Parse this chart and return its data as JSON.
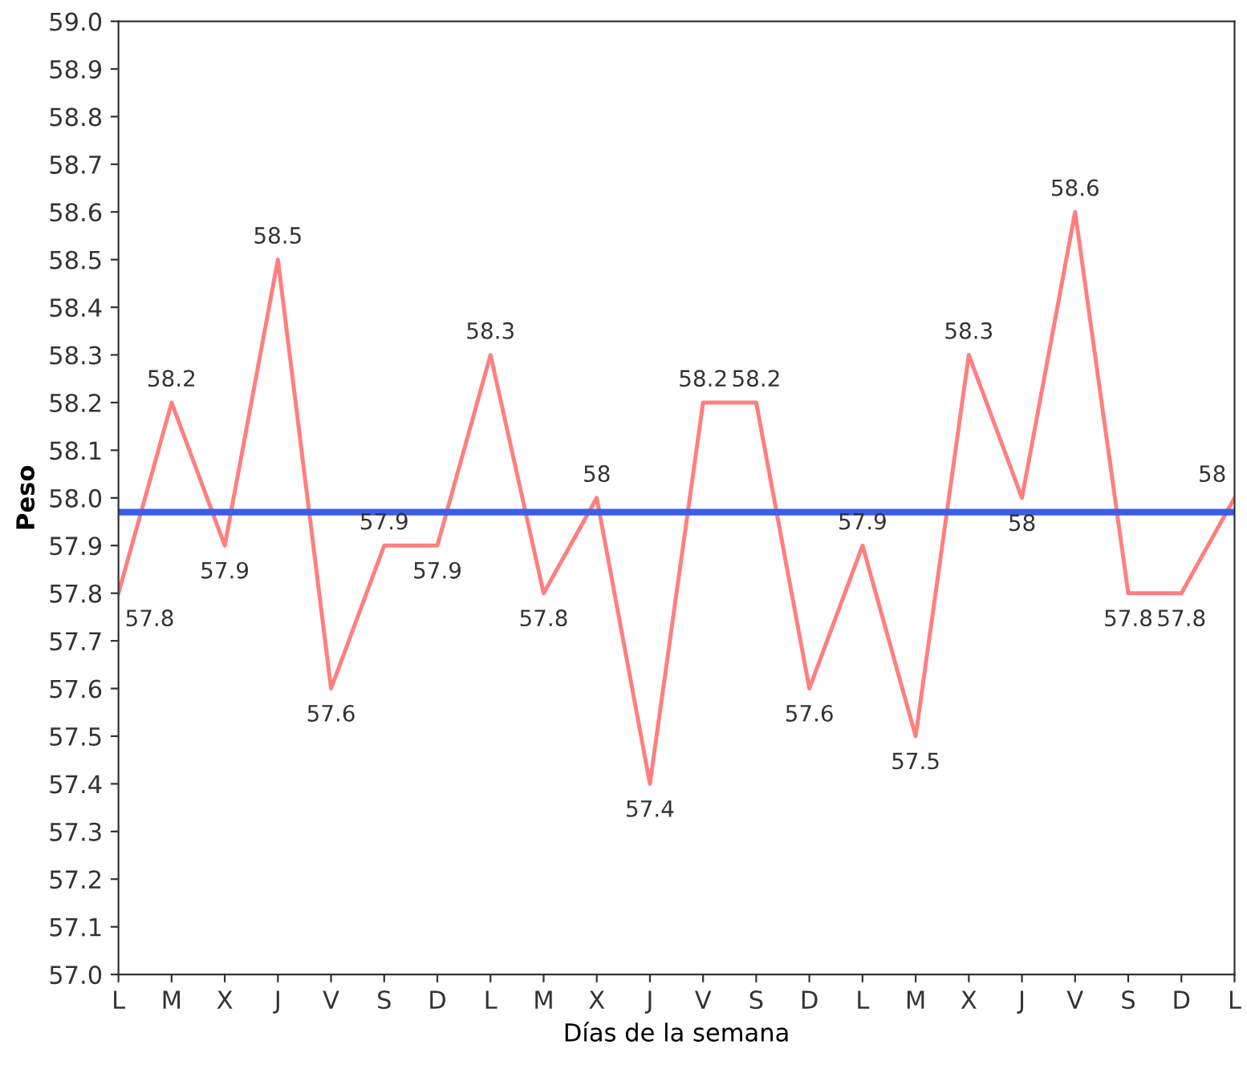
{
  "chart_data": {
    "type": "line",
    "xlabel": "Días de la semana",
    "ylabel": "Peso",
    "categories": [
      "L",
      "M",
      "X",
      "J",
      "V",
      "S",
      "D",
      "L",
      "M",
      "X",
      "J",
      "V",
      "S",
      "D",
      "L",
      "M",
      "X",
      "J",
      "V",
      "S",
      "D",
      "L"
    ],
    "series": [
      {
        "color": "#ff7f7f",
        "values": [
          57.8,
          58.2,
          57.9,
          58.5,
          57.6,
          57.9,
          57.9,
          58.3,
          57.8,
          58,
          57.4,
          58.2,
          58.2,
          57.6,
          57.9,
          57.5,
          58.3,
          58,
          58.6,
          57.8,
          57.8,
          58
        ],
        "value_labels": [
          "57.8",
          "58.2",
          "57.9",
          "58.5",
          "57.6",
          "57.9",
          "57.9",
          "58.3",
          "57.8",
          "58",
          "57.4",
          "58.2",
          "58.2",
          "57.6",
          "57.9",
          "57.5",
          "58.3",
          "58",
          "58.6",
          "57.8",
          "57.8",
          "58"
        ]
      }
    ],
    "ylim": [
      57.0,
      59.0
    ],
    "yticks": [
      {
        "value": 57.0,
        "label": "57.0"
      },
      {
        "value": 57.1,
        "label": "57.1"
      },
      {
        "value": 57.2,
        "label": "57.2"
      },
      {
        "value": 57.3,
        "label": "57.3"
      },
      {
        "value": 57.4,
        "label": "57.4"
      },
      {
        "value": 57.5,
        "label": "57.5"
      },
      {
        "value": 57.6,
        "label": "57.6"
      },
      {
        "value": 57.7,
        "label": "57.7"
      },
      {
        "value": 57.8,
        "label": "57.8"
      },
      {
        "value": 57.9,
        "label": "57.9"
      },
      {
        "value": 58.0,
        "label": "58.0"
      },
      {
        "value": 58.1,
        "label": "58.1"
      },
      {
        "value": 58.2,
        "label": "58.2"
      },
      {
        "value": 58.3,
        "label": "58.3"
      },
      {
        "value": 58.4,
        "label": "58.4"
      },
      {
        "value": 58.5,
        "label": "58.5"
      },
      {
        "value": 58.6,
        "label": "58.6"
      },
      {
        "value": 58.7,
        "label": "58.7"
      },
      {
        "value": 58.8,
        "label": "58.8"
      },
      {
        "value": 58.9,
        "label": "58.9"
      },
      {
        "value": 59.0,
        "label": "59.0"
      }
    ],
    "ref_lines": [
      {
        "axis": "y",
        "value": 57.97,
        "color": "#3b5ee8"
      }
    ],
    "grid": false,
    "marker": "none",
    "line_style": "solid"
  }
}
